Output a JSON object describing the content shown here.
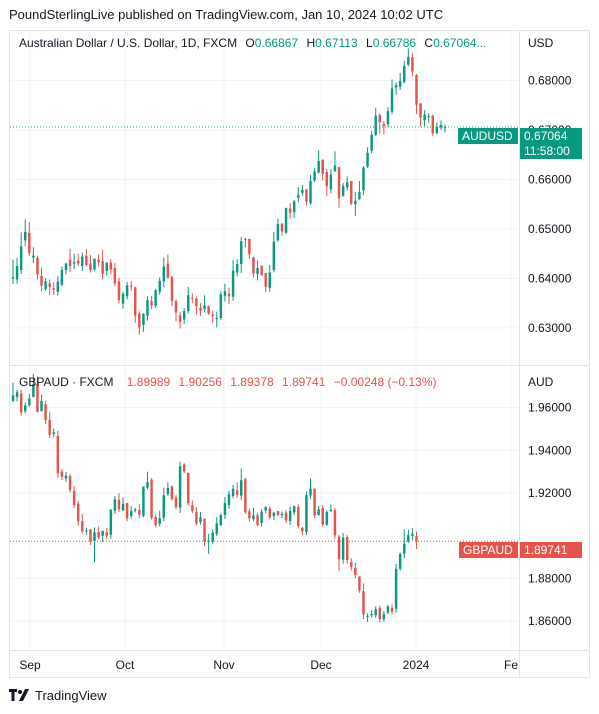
{
  "header": {
    "publisher": "PoundSterlingLive published on TradingView.com, Jan 10, 2024 10:02 UTC"
  },
  "footer": {
    "brand": "TradingView",
    "logo_icon": "tradingview-logo-icon"
  },
  "colors": {
    "up": "#089981",
    "down": "#e5534b",
    "grid": "#f0f3fa",
    "border": "#e0e3eb"
  },
  "panes": [
    {
      "legend": {
        "symbol": "Australian Dollar / U.S. Dollar, 1D, FXCM",
        "o_label": "O",
        "o": "0.66867",
        "h_label": "H",
        "h": "0.67113",
        "l_label": "L",
        "l": "0.66786",
        "c_label": "C",
        "c": "0.67064..."
      },
      "currency": "USD",
      "price_tag": {
        "symbol": "AUDUSD",
        "price": "0.67064",
        "countdown": "11:58:00"
      }
    },
    {
      "legend": {
        "symbol": "GBPAUD · FXCM",
        "o": "1.89989",
        "h": "1.90256",
        "l": "1.89378",
        "c": "1.89741",
        "change": "−0.00248 (−0.13%)"
      },
      "currency": "AUD",
      "price_tag": {
        "symbol": "GBPAUD",
        "price": "1.89741"
      }
    }
  ],
  "chart_data": [
    {
      "type": "candlestick",
      "series_name": "AUDUSD",
      "y_ticks": [
        "0.68000",
        "0.67000",
        "0.66000",
        "0.65000",
        "0.64000",
        "0.63000"
      ],
      "y_range": [
        0.6225,
        0.69
      ],
      "x_ticks": [
        "Sep",
        "Oct",
        "Nov",
        "Dec",
        "2024",
        "Fe"
      ],
      "close": [
        0.6403,
        0.6425,
        0.6465,
        0.6494,
        0.6451,
        0.6446,
        0.6408,
        0.6385,
        0.6394,
        0.6383,
        0.6377,
        0.6393,
        0.6417,
        0.643,
        0.6425,
        0.6433,
        0.643,
        0.6444,
        0.6427,
        0.6417,
        0.644,
        0.6433,
        0.6409,
        0.6432,
        0.6418,
        0.639,
        0.6356,
        0.6369,
        0.6386,
        0.6384,
        0.6325,
        0.6301,
        0.6328,
        0.6356,
        0.6346,
        0.6376,
        0.6395,
        0.6424,
        0.6402,
        0.6355,
        0.6331,
        0.6312,
        0.6334,
        0.6366,
        0.6359,
        0.6344,
        0.6335,
        0.6345,
        0.6329,
        0.6324,
        0.632,
        0.6368,
        0.6374,
        0.6364,
        0.6416,
        0.6429,
        0.6475,
        0.648,
        0.6449,
        0.641,
        0.6421,
        0.6406,
        0.6383,
        0.6412,
        0.6474,
        0.651,
        0.6495,
        0.6542,
        0.6533,
        0.6556,
        0.6569,
        0.6579,
        0.6555,
        0.6597,
        0.6616,
        0.6637,
        0.6611,
        0.6586,
        0.661,
        0.6628,
        0.6562,
        0.6587,
        0.6594,
        0.6551,
        0.6557,
        0.6575,
        0.6624,
        0.6654,
        0.669,
        0.6729,
        0.6716,
        0.6708,
        0.6738,
        0.6784,
        0.6791,
        0.6799,
        0.6829,
        0.6848,
        0.6818,
        0.6751,
        0.6725,
        0.6731,
        0.6728,
        0.6693,
        0.6706,
        0.671,
        0.6706
      ],
      "open": [
        0.64,
        0.6398,
        0.6417,
        0.6477,
        0.6492,
        0.6442,
        0.6442,
        0.6405,
        0.6379,
        0.639,
        0.638,
        0.6373,
        0.6387,
        0.6417,
        0.6438,
        0.643,
        0.6436,
        0.6425,
        0.6446,
        0.643,
        0.6418,
        0.6438,
        0.6435,
        0.6415,
        0.6432,
        0.6421,
        0.6394,
        0.6349,
        0.6364,
        0.6385,
        0.6382,
        0.6329,
        0.6306,
        0.6325,
        0.6354,
        0.6345,
        0.6373,
        0.6394,
        0.643,
        0.6404,
        0.6354,
        0.6325,
        0.6317,
        0.6334,
        0.6361,
        0.6359,
        0.634,
        0.6338,
        0.6344,
        0.6327,
        0.6318,
        0.632,
        0.6365,
        0.6369,
        0.6363,
        0.6412,
        0.6429,
        0.6478,
        0.648,
        0.6443,
        0.6409,
        0.6426,
        0.6411,
        0.6381,
        0.6417,
        0.6477,
        0.6511,
        0.6492,
        0.6541,
        0.6534,
        0.6563,
        0.6573,
        0.658,
        0.6552,
        0.6598,
        0.6614,
        0.664,
        0.6615,
        0.658,
        0.6616,
        0.6625,
        0.6567,
        0.6584,
        0.6597,
        0.655,
        0.656,
        0.6578,
        0.6626,
        0.6658,
        0.669,
        0.673,
        0.6712,
        0.6712,
        0.6737,
        0.6786,
        0.6787,
        0.6797,
        0.6832,
        0.6847,
        0.6811,
        0.6754,
        0.672,
        0.6727,
        0.6729,
        0.6694,
        0.6705,
        0.6706
      ],
      "high": [
        0.6438,
        0.6441,
        0.6493,
        0.6519,
        0.6514,
        0.6463,
        0.6446,
        0.6422,
        0.64,
        0.6398,
        0.6392,
        0.6405,
        0.6424,
        0.6432,
        0.646,
        0.645,
        0.645,
        0.6452,
        0.6459,
        0.6447,
        0.644,
        0.6448,
        0.6458,
        0.6432,
        0.6439,
        0.6431,
        0.6401,
        0.6373,
        0.6393,
        0.6395,
        0.6383,
        0.6333,
        0.633,
        0.6364,
        0.6365,
        0.6379,
        0.6402,
        0.6442,
        0.6448,
        0.6404,
        0.6357,
        0.6332,
        0.634,
        0.6383,
        0.637,
        0.6364,
        0.635,
        0.6366,
        0.6345,
        0.6334,
        0.6333,
        0.6374,
        0.6389,
        0.6381,
        0.6437,
        0.6439,
        0.6484,
        0.6482,
        0.648,
        0.6444,
        0.6436,
        0.6426,
        0.6411,
        0.6427,
        0.6494,
        0.652,
        0.6511,
        0.6543,
        0.6552,
        0.6559,
        0.6585,
        0.6589,
        0.6581,
        0.6609,
        0.6623,
        0.6659,
        0.664,
        0.6621,
        0.6621,
        0.6657,
        0.6625,
        0.6593,
        0.6606,
        0.6596,
        0.6575,
        0.6597,
        0.6627,
        0.6665,
        0.6698,
        0.6745,
        0.6734,
        0.6718,
        0.6746,
        0.6802,
        0.6796,
        0.6815,
        0.684,
        0.6865,
        0.6855,
        0.6813,
        0.6749,
        0.674,
        0.6734,
        0.6731,
        0.6715,
        0.6719,
        0.6711
      ],
      "low": [
        0.6389,
        0.6389,
        0.6409,
        0.6465,
        0.6446,
        0.6431,
        0.6398,
        0.6374,
        0.6375,
        0.6366,
        0.6366,
        0.6365,
        0.6384,
        0.6408,
        0.6413,
        0.6419,
        0.6425,
        0.6415,
        0.6424,
        0.6412,
        0.6415,
        0.6424,
        0.6398,
        0.6406,
        0.6409,
        0.6384,
        0.6349,
        0.6339,
        0.6358,
        0.6375,
        0.631,
        0.6287,
        0.6292,
        0.6315,
        0.6338,
        0.634,
        0.6367,
        0.6382,
        0.6399,
        0.6344,
        0.6313,
        0.6299,
        0.6308,
        0.6329,
        0.635,
        0.6327,
        0.6324,
        0.6331,
        0.6326,
        0.631,
        0.6301,
        0.6316,
        0.6353,
        0.6348,
        0.6355,
        0.6404,
        0.6411,
        0.6463,
        0.6439,
        0.6402,
        0.6396,
        0.6406,
        0.6372,
        0.6373,
        0.6412,
        0.6474,
        0.6486,
        0.649,
        0.6521,
        0.6522,
        0.6554,
        0.6567,
        0.6548,
        0.6549,
        0.6595,
        0.6612,
        0.6598,
        0.6566,
        0.6572,
        0.6621,
        0.6543,
        0.6565,
        0.6578,
        0.6548,
        0.6526,
        0.6559,
        0.6569,
        0.6623,
        0.6652,
        0.6688,
        0.6693,
        0.6691,
        0.6707,
        0.6732,
        0.6771,
        0.6781,
        0.6794,
        0.6829,
        0.6809,
        0.6732,
        0.6707,
        0.6708,
        0.6715,
        0.6688,
        0.6691,
        0.67,
        0.6695
      ]
    },
    {
      "type": "candlestick",
      "series_name": "GBPAUD",
      "y_ticks": [
        "1.96000",
        "1.94000",
        "1.92000",
        "1.88000",
        "1.86000"
      ],
      "y_range": [
        1.8465,
        1.9795
      ],
      "x_ticks": [
        "Sep",
        "Oct",
        "Nov",
        "Dec",
        "2024",
        "Fe"
      ],
      "close": [
        1.9658,
        1.9672,
        1.9578,
        1.961,
        1.9643,
        1.971,
        1.958,
        1.9632,
        1.9541,
        1.9473,
        1.9484,
        1.9293,
        1.9276,
        1.9282,
        1.9215,
        1.9144,
        1.9067,
        1.902,
        1.9024,
        1.8974,
        1.9016,
        1.8992,
        1.9023,
        1.9,
        1.9122,
        1.917,
        1.9124,
        1.9149,
        1.9081,
        1.9115,
        1.9124,
        1.9099,
        1.923,
        1.9251,
        1.9084,
        1.905,
        1.9082,
        1.919,
        1.9224,
        1.9172,
        1.9134,
        1.9325,
        1.9301,
        1.9153,
        1.9117,
        1.9058,
        1.9086,
        1.8975,
        1.8975,
        1.9014,
        1.9058,
        1.9097,
        1.9153,
        1.9195,
        1.922,
        1.9191,
        1.926,
        1.911,
        1.9082,
        1.9096,
        1.905,
        1.9113,
        1.9134,
        1.9086,
        1.9108,
        1.9098,
        1.9102,
        1.9072,
        1.9116,
        1.9138,
        1.9045,
        1.902,
        1.919,
        1.9221,
        1.9095,
        1.9124,
        1.9053,
        1.9111,
        1.9122,
        1.9002,
        1.889,
        1.8991,
        1.8886,
        1.8853,
        1.8816,
        1.8744,
        1.8631,
        1.8625,
        1.8633,
        1.8656,
        1.861,
        1.8632,
        1.8669,
        1.8645,
        1.8846,
        1.8915,
        1.8962,
        1.9003,
        1.9009,
        1.8974
      ],
      "open": [
        1.9632,
        1.965,
        1.9666,
        1.9583,
        1.9613,
        1.9651,
        1.9711,
        1.9584,
        1.9616,
        1.9543,
        1.9477,
        1.9468,
        1.9301,
        1.9268,
        1.928,
        1.921,
        1.915,
        1.9068,
        1.9022,
        1.903,
        1.8976,
        1.9017,
        1.9,
        1.9016,
        1.9005,
        1.9118,
        1.9168,
        1.9119,
        1.9153,
        1.9092,
        1.9118,
        1.912,
        1.9094,
        1.9225,
        1.9263,
        1.9088,
        1.9056,
        1.9085,
        1.9196,
        1.9232,
        1.9177,
        1.9131,
        1.9334,
        1.9294,
        1.9143,
        1.9111,
        1.9064,
        1.908,
        1.897,
        1.8972,
        1.9009,
        1.905,
        1.9097,
        1.9144,
        1.9186,
        1.9212,
        1.9188,
        1.9265,
        1.9115,
        1.9078,
        1.9097,
        1.906,
        1.9118,
        1.9127,
        1.9092,
        1.9116,
        1.9097,
        1.9108,
        1.9069,
        1.911,
        1.9135,
        1.9037,
        1.9018,
        1.9188,
        1.9221,
        1.9097,
        1.913,
        1.9052,
        1.9115,
        1.912,
        1.8996,
        1.8888,
        1.8994,
        1.8876,
        1.885,
        1.881,
        1.874,
        1.8624,
        1.8631,
        1.8628,
        1.8661,
        1.861,
        1.864,
        1.8663,
        1.8658,
        1.8845,
        1.8916,
        1.8973,
        1.8999,
        1.8999
      ],
      "high": [
        1.9717,
        1.9684,
        1.9684,
        1.9626,
        1.9664,
        1.9759,
        1.9746,
        1.9661,
        1.9633,
        1.9579,
        1.9502,
        1.9492,
        1.9313,
        1.9299,
        1.9288,
        1.9233,
        1.9163,
        1.9101,
        1.9038,
        1.9032,
        1.9039,
        1.9043,
        1.9023,
        1.9036,
        1.9125,
        1.9186,
        1.92,
        1.9178,
        1.9155,
        1.914,
        1.9131,
        1.9149,
        1.923,
        1.93,
        1.927,
        1.9101,
        1.9118,
        1.9225,
        1.925,
        1.9235,
        1.9192,
        1.9347,
        1.934,
        1.9296,
        1.9165,
        1.9134,
        1.9112,
        1.908,
        1.9009,
        1.9029,
        1.9087,
        1.9105,
        1.9181,
        1.921,
        1.9238,
        1.925,
        1.9315,
        1.9272,
        1.9128,
        1.9131,
        1.9107,
        1.9125,
        1.9139,
        1.9136,
        1.9111,
        1.9116,
        1.9113,
        1.9121,
        1.9136,
        1.9142,
        1.9147,
        1.9042,
        1.9209,
        1.9269,
        1.9221,
        1.914,
        1.9144,
        1.9119,
        1.9147,
        1.913,
        1.9003,
        1.9013,
        1.9003,
        1.8894,
        1.8874,
        1.881,
        1.8777,
        1.8637,
        1.8653,
        1.8669,
        1.8673,
        1.8647,
        1.8676,
        1.868,
        1.8868,
        1.8922,
        1.903,
        1.9029,
        1.9036,
        1.902
      ],
      "low": [
        1.9627,
        1.963,
        1.9562,
        1.9573,
        1.9603,
        1.9648,
        1.9578,
        1.9583,
        1.9522,
        1.9457,
        1.9461,
        1.9271,
        1.926,
        1.9252,
        1.9203,
        1.9129,
        1.9046,
        1.901,
        1.9004,
        1.8957,
        1.8876,
        1.8983,
        1.8971,
        1.8985,
        1.8987,
        1.9102,
        1.9111,
        1.9116,
        1.9068,
        1.908,
        1.9109,
        1.9083,
        1.9087,
        1.9219,
        1.9075,
        1.9039,
        1.9043,
        1.9068,
        1.9186,
        1.9164,
        1.9124,
        1.9107,
        1.9293,
        1.9141,
        1.9107,
        1.9049,
        1.9052,
        1.8952,
        1.8915,
        1.896,
        1.8999,
        1.9046,
        1.9079,
        1.9127,
        1.9175,
        1.9179,
        1.9166,
        1.9102,
        1.9066,
        1.907,
        1.9044,
        1.9043,
        1.9105,
        1.9076,
        1.9073,
        1.9091,
        1.9082,
        1.906,
        1.9051,
        1.9096,
        1.9033,
        1.9003,
        1.9004,
        1.9172,
        1.9083,
        1.9094,
        1.9043,
        1.9046,
        1.9112,
        1.8986,
        1.8833,
        1.8869,
        1.8869,
        1.8838,
        1.8802,
        1.8733,
        1.861,
        1.8596,
        1.8618,
        1.8617,
        1.8594,
        1.8598,
        1.8632,
        1.863,
        1.8639,
        1.8836,
        1.8896,
        1.8966,
        1.898,
        1.8938
      ]
    }
  ]
}
